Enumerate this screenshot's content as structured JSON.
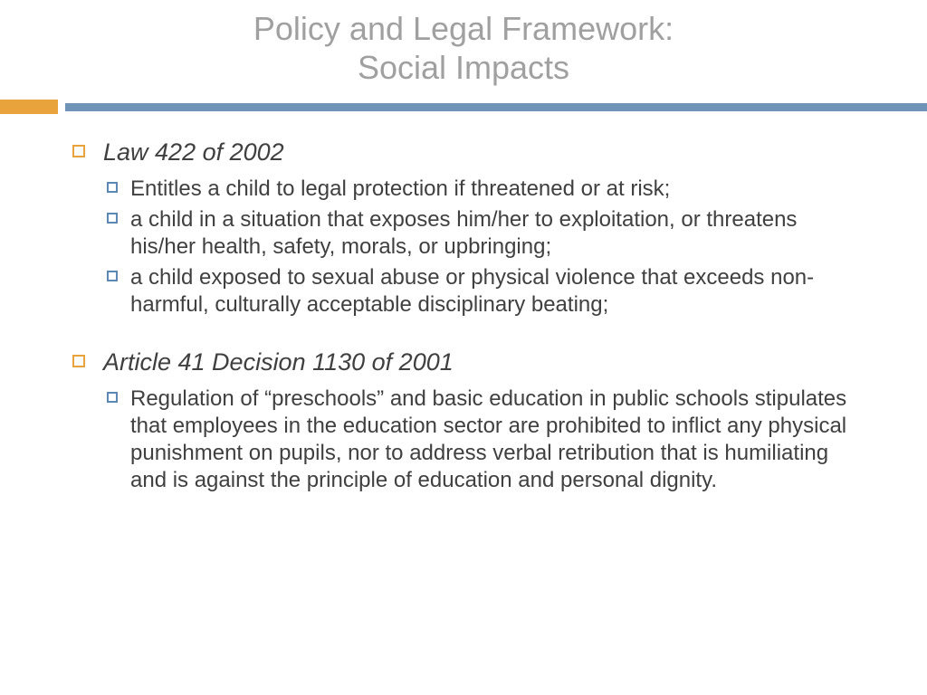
{
  "title": {
    "line1": "Policy and Legal Framework:",
    "line2": "Social Impacts"
  },
  "colors": {
    "title_color": "#a0a0a0",
    "orange": "#e8a33d",
    "blue_bar": "#6f94b8",
    "bullet_blue": "#5b89b4",
    "body_text": "#404040",
    "background": "#ffffff"
  },
  "typography": {
    "title_fontsize": 36,
    "main_fontsize": 27,
    "sub_fontsize": 24
  },
  "sections": [
    {
      "heading": "Law 422 of 2002",
      "items": [
        "Entitles a child to legal protection if threatened or at risk;",
        "a child in a situation that exposes him/her to exploitation, or threatens his/her health, safety, morals, or upbringing;",
        "a child exposed to sexual abuse or physical violence that exceeds non-harmful, culturally acceptable disciplinary beating;"
      ]
    },
    {
      "heading": "Article 41 Decision 1130 of 2001",
      "items": [
        "Regulation of “preschools” and basic education in public schools stipulates that employees in the education sector are prohibited to inflict any physical punishment on pupils, nor to address verbal retribution that is humiliating and is against the principle of education and personal dignity."
      ]
    }
  ]
}
